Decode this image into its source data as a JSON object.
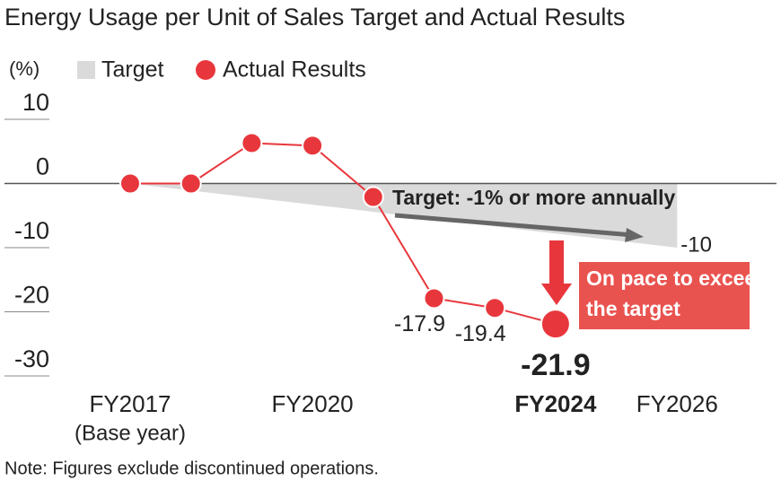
{
  "chart_data": {
    "type": "line",
    "title": "Energy Usage per Unit of Sales Target and Actual Results",
    "y_axis_label": "(%)",
    "categories": [
      "FY2017",
      null,
      null,
      "FY2020",
      null,
      null,
      null,
      "FY2024",
      null,
      "FY2026"
    ],
    "category_sublabel": "(Base year)",
    "series": [
      {
        "name": "Target",
        "kind": "area",
        "color": "#dadada",
        "values": [
          0,
          -1.1,
          -2.2,
          -3.3,
          -4.4,
          -5.6,
          -6.7,
          -7.8,
          -8.9,
          -10
        ]
      },
      {
        "name": "Actual Results",
        "kind": "line",
        "color": "#e8373c",
        "values": [
          0,
          0,
          6.3,
          5.9,
          -2.1,
          -17.9,
          -19.4,
          -21.9,
          null,
          null
        ]
      }
    ],
    "ylim": [
      -30,
      10
    ],
    "yticks": [
      10,
      0,
      -10,
      -20,
      -30
    ],
    "annotations": {
      "target_note": "Target: -1% or more annually",
      "callout": [
        "On pace to exceed",
        "the target"
      ]
    },
    "note": "Note: Figures exclude discontinued operations."
  }
}
